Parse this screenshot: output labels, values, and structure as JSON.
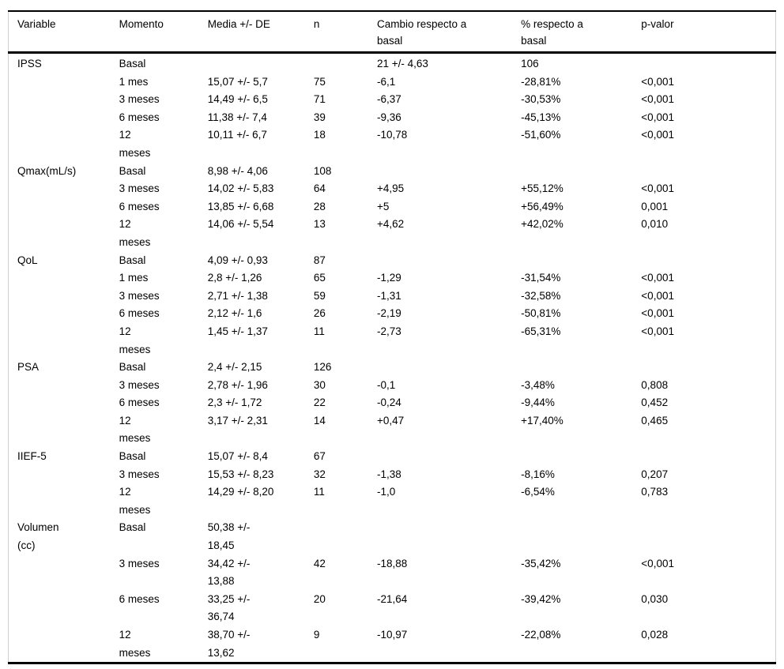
{
  "table": {
    "headers": [
      {
        "key": "variable",
        "label": "Variable"
      },
      {
        "key": "momento",
        "label": "Momento"
      },
      {
        "key": "media",
        "label": "Media +/- DE"
      },
      {
        "key": "n",
        "label": "n"
      },
      {
        "key": "cambio",
        "label": "Cambio respecto a\nbasal"
      },
      {
        "key": "pct",
        "label": "% respecto a\nbasal"
      },
      {
        "key": "pvalor",
        "label": "p-valor"
      }
    ],
    "groups": [
      {
        "variable": "IPSS",
        "measurements": [
          {
            "momento": "Basal",
            "media": "",
            "n": "",
            "cambio": "21 +/- 4,63",
            "pct": "106",
            "pvalor": ""
          },
          {
            "momento": "1 mes",
            "media": "15,07 +/- 5,7",
            "n": "75",
            "cambio": "-6,1",
            "pct": "-28,81%",
            "pvalor": "<0,001"
          },
          {
            "momento": "3 meses",
            "media": "14,49 +/- 6,5",
            "n": "71",
            "cambio": "-6,37",
            "pct": "-30,53%",
            "pvalor": "<0,001"
          },
          {
            "momento": "6 meses",
            "media": "11,38 +/- 7,4",
            "n": "39",
            "cambio": "-9,36",
            "pct": "-45,13%",
            "pvalor": "<0,001"
          },
          {
            "momento": "12\nmeses",
            "media": "10,11 +/- 6,7",
            "n": "18",
            "cambio": "-10,78",
            "pct": "-51,60%",
            "pvalor": "<0,001"
          }
        ]
      },
      {
        "variable": "Qmax(mL/s)",
        "measurements": [
          {
            "momento": "Basal",
            "media": "8,98 +/- 4,06",
            "n": "108",
            "cambio": "",
            "pct": "",
            "pvalor": ""
          },
          {
            "momento": "3 meses",
            "media": "14,02 +/- 5,83",
            "n": "64",
            "cambio": "+4,95",
            "pct": "+55,12%",
            "pvalor": "<0,001"
          },
          {
            "momento": "6 meses",
            "media": "13,85 +/- 6,68",
            "n": "28",
            "cambio": "+5",
            "pct": "+56,49%",
            "pvalor": "0,001"
          },
          {
            "momento": "12\nmeses",
            "media": "14,06 +/- 5,54",
            "n": "13",
            "cambio": "+4,62",
            "pct": "+42,02%",
            "pvalor": "0,010"
          }
        ]
      },
      {
        "variable": "QoL",
        "measurements": [
          {
            "momento": "Basal",
            "media": "4,09 +/- 0,93",
            "n": "87",
            "cambio": "",
            "pct": "",
            "pvalor": ""
          },
          {
            "momento": "1 mes",
            "media": "2,8 +/- 1,26",
            "n": "65",
            "cambio": "-1,29",
            "pct": "-31,54%",
            "pvalor": "<0,001"
          },
          {
            "momento": "3 meses",
            "media": "2,71 +/- 1,38",
            "n": "59",
            "cambio": "-1,31",
            "pct": "-32,58%",
            "pvalor": "<0,001"
          },
          {
            "momento": "6 meses",
            "media": "2,12 +/- 1,6",
            "n": "26",
            "cambio": "-2,19",
            "pct": "-50,81%",
            "pvalor": "<0,001"
          },
          {
            "momento": "12\nmeses",
            "media": "1,45 +/- 1,37",
            "n": "11",
            "cambio": "-2,73",
            "pct": "-65,31%",
            "pvalor": "<0,001"
          }
        ]
      },
      {
        "variable": "PSA",
        "measurements": [
          {
            "momento": "Basal",
            "media": "2,4 +/- 2,15",
            "n": "126",
            "cambio": "",
            "pct": "",
            "pvalor": ""
          },
          {
            "momento": "3 meses",
            "media": "2,78 +/- 1,96",
            "n": "30",
            "cambio": "-0,1",
            "pct": "-3,48%",
            "pvalor": "0,808"
          },
          {
            "momento": "6 meses",
            "media": "2,3 +/- 1,72",
            "n": "22",
            "cambio": "-0,24",
            "pct": "-9,44%",
            "pvalor": "0,452"
          },
          {
            "momento": "12\nmeses",
            "media": "3,17 +/- 2,31",
            "n": "14",
            "cambio": "+0,47",
            "pct": "+17,40%",
            "pvalor": "0,465"
          }
        ]
      },
      {
        "variable": "IIEF-5",
        "measurements": [
          {
            "momento": "Basal",
            "media": "15,07 +/- 8,4",
            "n": "67",
            "cambio": "",
            "pct": "",
            "pvalor": ""
          },
          {
            "momento": "3 meses",
            "media": "15,53 +/- 8,23",
            "n": "32",
            "cambio": "-1,38",
            "pct": "-8,16%",
            "pvalor": "0,207"
          },
          {
            "momento": "12\nmeses",
            "media": "14,29 +/- 8,20",
            "n": "11",
            "cambio": "-1,0",
            "pct": "-6,54%",
            "pvalor": "0,783"
          }
        ]
      },
      {
        "variable": "Volumen\n(cc)",
        "measurements": [
          {
            "momento": "Basal",
            "media": "50,38 +/-\n18,45",
            "n": "",
            "cambio": "",
            "pct": "",
            "pvalor": ""
          },
          {
            "momento": "3 meses",
            "media": "34,42 +/-\n13,88",
            "n": "42",
            "cambio": "-18,88",
            "pct": "-35,42%",
            "pvalor": "<0,001"
          },
          {
            "momento": "6 meses",
            "media": "33,25 +/-\n36,74",
            "n": "20",
            "cambio": "-21,64",
            "pct": "-39,42%",
            "pvalor": "0,030"
          },
          {
            "momento": "12\nmeses",
            "media": "38,70 +/-\n13,62",
            "n": "9",
            "cambio": "-10,97",
            "pct": "-22,08%",
            "pvalor": "0,028"
          }
        ]
      }
    ]
  }
}
